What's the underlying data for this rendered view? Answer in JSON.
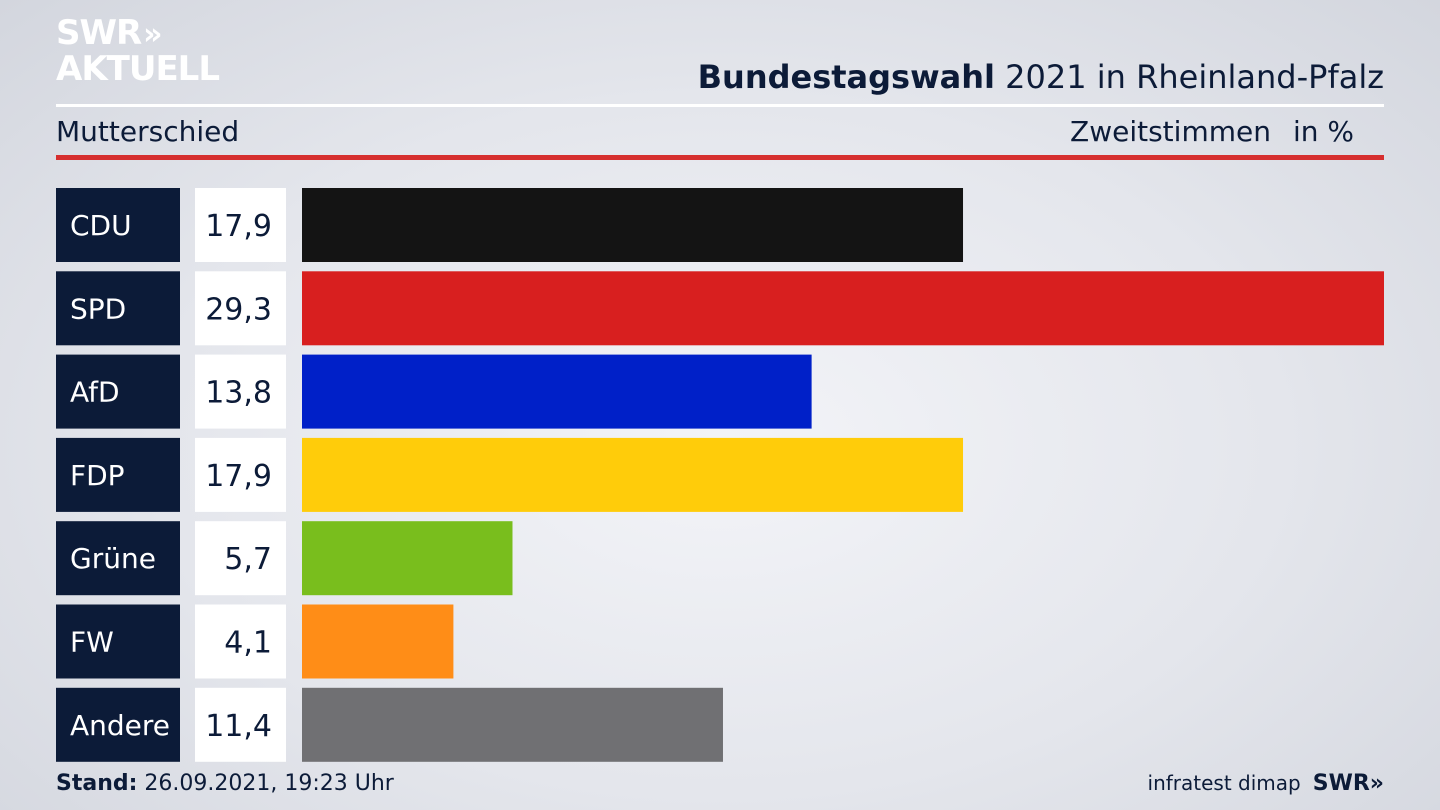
{
  "logo": {
    "line1": "SWR",
    "line2": "AKTUELL",
    "chevrons": "»"
  },
  "header": {
    "title_bold": "Bundestagswahl",
    "title_rest": " 2021 in Rheinland-Pfalz",
    "subtitle": "Mutterschied",
    "metric": "Zweitstimmen",
    "unit": "in %"
  },
  "chart_data": {
    "type": "bar",
    "orientation": "horizontal",
    "categories": [
      "CDU",
      "SPD",
      "AfD",
      "FDP",
      "Grüne",
      "FW",
      "Andere"
    ],
    "values": [
      17.9,
      29.3,
      13.8,
      17.9,
      5.7,
      4.1,
      11.4
    ],
    "value_labels": [
      "17,9",
      "29,3",
      "13,8",
      "17,9",
      "5,7",
      "4,1",
      "11,4"
    ],
    "colors": [
      "#141414",
      "#d81f1f",
      "#0020c8",
      "#ffcc0a",
      "#79be1d",
      "#ff8d17",
      "#707073"
    ],
    "unit": "in %",
    "xlim": [
      0,
      29.3
    ]
  },
  "footer": {
    "stand_label": "Stand:",
    "stand_value": " 26.09.2021, 19:23 Uhr",
    "source": "infratest dimap",
    "brand": "SWR»"
  }
}
